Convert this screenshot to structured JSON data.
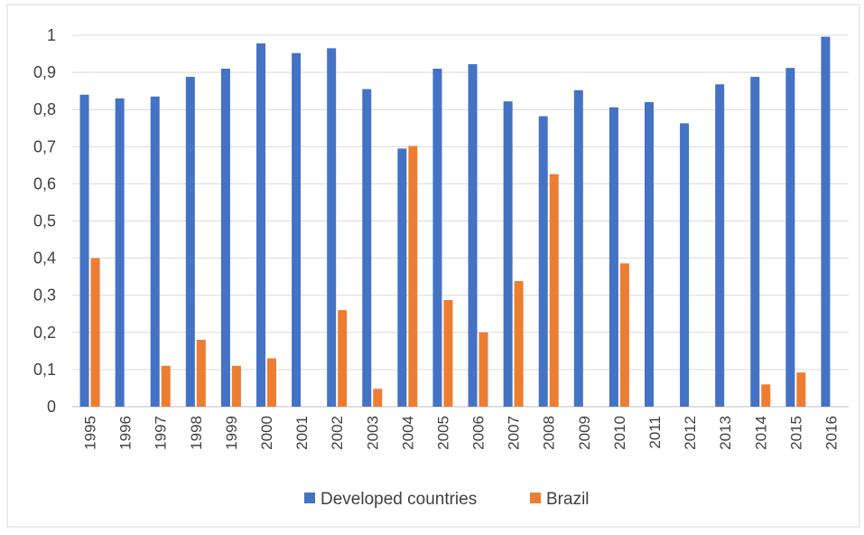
{
  "chart_data": {
    "type": "bar",
    "title": "",
    "xlabel": "",
    "ylabel": "",
    "ylim": [
      0,
      1
    ],
    "yticks": [
      "0",
      "0,1",
      "0,2",
      "0,3",
      "0,4",
      "0,5",
      "0,6",
      "0,7",
      "0,8",
      "0,9",
      "1"
    ],
    "ytick_values": [
      0,
      0.1,
      0.2,
      0.3,
      0.4,
      0.5,
      0.6,
      0.7,
      0.8,
      0.9,
      1
    ],
    "grid": true,
    "legend_position": "bottom",
    "categories": [
      "1995",
      "1996",
      "1997",
      "1998",
      "1999",
      "2000",
      "2001",
      "2002",
      "2003",
      "2004",
      "2005",
      "2006",
      "2007",
      "2008",
      "2009",
      "2010",
      "2011",
      "2012",
      "2013",
      "2014",
      "2015",
      "2016"
    ],
    "series": [
      {
        "name": "Developed countries",
        "color": "#4472C4",
        "values": [
          0.84,
          0.83,
          0.835,
          0.888,
          0.91,
          0.978,
          0.952,
          0.965,
          0.855,
          0.695,
          0.91,
          0.922,
          0.822,
          0.782,
          0.852,
          0.806,
          0.82,
          0.763,
          0.868,
          0.888,
          0.912,
          0.996
        ]
      },
      {
        "name": "Brazil",
        "color": "#ED7D31",
        "values": [
          0.4,
          0,
          0.11,
          0.18,
          0.11,
          0.13,
          0,
          0.26,
          0.048,
          0.702,
          0.287,
          0.2,
          0.338,
          0.626,
          0,
          0.386,
          0,
          0,
          0,
          0.06,
          0.092,
          0
        ]
      }
    ]
  }
}
